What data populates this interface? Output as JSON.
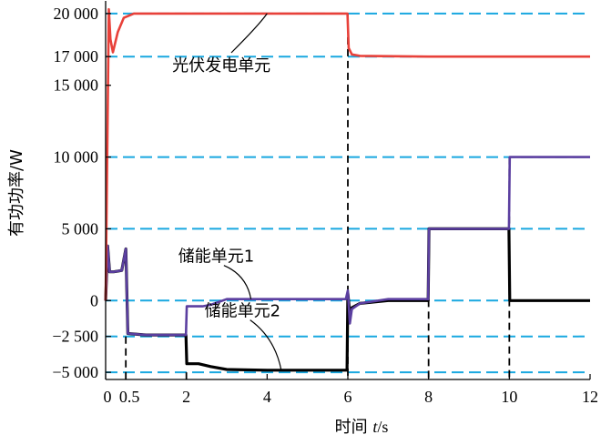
{
  "chart_data": {
    "type": "line",
    "xlabel": "时间 t/s",
    "ylabel": "有功功率/W",
    "xlim": [
      0,
      12
    ],
    "ylim": [
      -5500,
      20500
    ],
    "xticks": [
      {
        "v": 0,
        "label": "0"
      },
      {
        "v": 0.5,
        "label": "0.5"
      },
      {
        "v": 2,
        "label": "2"
      },
      {
        "v": 4,
        "label": "4"
      },
      {
        "v": 6,
        "label": "6"
      },
      {
        "v": 8,
        "label": "8"
      },
      {
        "v": 10,
        "label": "10"
      },
      {
        "v": 12,
        "label": "12"
      }
    ],
    "yticks": [
      {
        "v": 20000,
        "label": "20 000"
      },
      {
        "v": 17000,
        "label": "17 000"
      },
      {
        "v": 15000,
        "label": "15 000"
      },
      {
        "v": 10000,
        "label": "10 000"
      },
      {
        "v": 5000,
        "label": "5 000"
      },
      {
        "v": 0,
        "label": "0"
      },
      {
        "v": -2500,
        "label": "−2 500"
      },
      {
        "v": -5000,
        "label": "−5 000"
      }
    ],
    "reference_lines_y": [
      20000,
      17000,
      10000,
      5000,
      0,
      -2500,
      -5000
    ],
    "switch_times": [
      0.5,
      2,
      6,
      8,
      10
    ],
    "switch_line_tops": [
      -2500,
      -5000,
      20000,
      5000,
      10000
    ],
    "grid": false,
    "series": [
      {
        "name": "光伏发电单元",
        "color": "#e8413a",
        "x": [
          0,
          0.08,
          0.12,
          0.18,
          0.3,
          0.45,
          0.7,
          1.0,
          2,
          4,
          5.99,
          6.02,
          6.1,
          6.3,
          8,
          10,
          12
        ],
        "y": [
          0,
          20300,
          18200,
          17300,
          18700,
          19700,
          20000,
          20000,
          20000,
          20000,
          20000,
          17600,
          17150,
          17050,
          17000,
          17000,
          17000
        ]
      },
      {
        "name": "储能单元1",
        "color": "#5b3fa0",
        "x": [
          0,
          0.05,
          0.1,
          0.2,
          0.4,
          0.5,
          0.55,
          1.0,
          1.99,
          2.01,
          2.4,
          2.6,
          3.0,
          4,
          5.95,
          6.0,
          6.05,
          6.1,
          6.3,
          7.0,
          7.99,
          8.01,
          9.99,
          10.01,
          12
        ],
        "y": [
          0,
          3800,
          2000,
          2000,
          2100,
          3600,
          -2300,
          -2400,
          -2400,
          -400,
          -400,
          -300,
          100,
          100,
          100,
          700,
          -1600,
          -600,
          -200,
          100,
          100,
          5000,
          5000,
          10000,
          10000
        ]
      },
      {
        "name": "储能单元2",
        "color": "#000000",
        "x": [
          0,
          0.05,
          0.1,
          0.2,
          0.4,
          0.5,
          0.55,
          1.0,
          1.99,
          2.01,
          2.3,
          2.6,
          3.0,
          4,
          5.98,
          6.0,
          6.05,
          6.1,
          6.3,
          7.0,
          7.99,
          8.01,
          9.99,
          10.01,
          12
        ],
        "y": [
          0,
          3800,
          2000,
          2000,
          2100,
          3600,
          -2300,
          -2400,
          -2400,
          -4400,
          -4400,
          -4600,
          -4800,
          -4850,
          -4850,
          500,
          -900,
          -500,
          -200,
          0,
          0,
          5000,
          5000,
          0,
          0
        ]
      }
    ],
    "annotations": [
      {
        "text": "光伏发电单元",
        "label_at": [
          1.65,
          16000
        ],
        "point_at": [
          4.0,
          20000
        ]
      },
      {
        "text": "储能单元1",
        "label_at": [
          1.8,
          2700
        ],
        "point_at": [
          3.6,
          100
        ]
      },
      {
        "text": "储能单元2",
        "label_at": [
          2.45,
          -1100
        ],
        "point_at": [
          4.35,
          -4850
        ]
      }
    ]
  }
}
